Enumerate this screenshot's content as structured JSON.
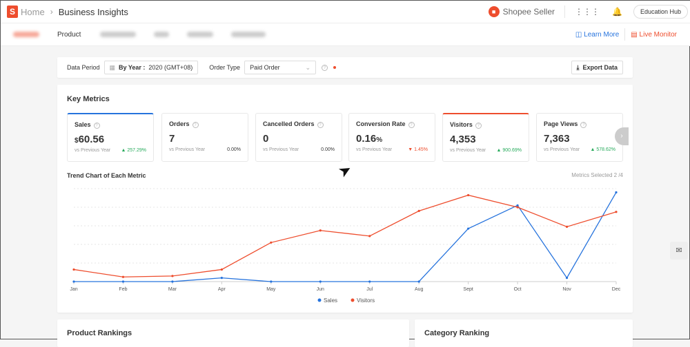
{
  "header": {
    "logo": "S",
    "home": "Home",
    "current": "Business Insights",
    "brand": "Shopee Seller",
    "education_hub": "Education Hub"
  },
  "tabs": {
    "product": "Product",
    "learn_more": "Learn More",
    "live_monitor": "Live Monitor"
  },
  "filter": {
    "data_period_label": "Data Period",
    "period_type": "By Year :",
    "period_value": "2020 (GMT+08)",
    "order_type_label": "Order Type",
    "order_type_value": "Paid Order",
    "export": "Export Data"
  },
  "key_metrics": {
    "title": "Key Metrics",
    "metrics": [
      {
        "name": "Sales",
        "prefix": "$",
        "value": "60.56",
        "suffix": "",
        "compare": "vs Previous Year",
        "change": "257.29%",
        "trend": "up"
      },
      {
        "name": "Orders",
        "prefix": "",
        "value": "7",
        "suffix": "",
        "compare": "vs Previous Year",
        "change": "0.00%",
        "trend": "flat"
      },
      {
        "name": "Cancelled Orders",
        "prefix": "",
        "value": "0",
        "suffix": "",
        "compare": "vs Previous Year",
        "change": "0.00%",
        "trend": "flat"
      },
      {
        "name": "Conversion Rate",
        "prefix": "",
        "value": "0.16",
        "suffix": "%",
        "compare": "vs Previous Year",
        "change": "1.45%",
        "trend": "down"
      },
      {
        "name": "Visitors",
        "prefix": "",
        "value": "4,353",
        "suffix": "",
        "compare": "vs Previous Year",
        "change": "900.69%",
        "trend": "up"
      },
      {
        "name": "Page Views",
        "prefix": "",
        "value": "7,363",
        "suffix": "",
        "compare": "vs Previous Year",
        "change": "578.62%",
        "trend": "up"
      }
    ]
  },
  "trend": {
    "title": "Trend Chart of Each Metric",
    "selected": "Metrics Selected 2 /4"
  },
  "chart_data": {
    "type": "line",
    "categories": [
      "Jan",
      "Feb",
      "Mar",
      "Apr",
      "May",
      "Jun",
      "Jul",
      "Aug",
      "Sept",
      "Oct",
      "Nov",
      "Dec"
    ],
    "series": [
      {
        "name": "Sales",
        "color": "#2673dd",
        "values": [
          0,
          0,
          0,
          4,
          0,
          0,
          0,
          0,
          57,
          82,
          4,
          96
        ]
      },
      {
        "name": "Visitors",
        "color": "#ee4d2d",
        "values": [
          13,
          5,
          6,
          13,
          42,
          55,
          49,
          76,
          93,
          80,
          59,
          75
        ]
      }
    ],
    "ylim": [
      0,
      100
    ],
    "grid": true,
    "legend": "bottom",
    "note": "relative scale; y-axis unlabeled"
  },
  "rankings": {
    "product": "Product Rankings",
    "category": "Category Ranking"
  }
}
